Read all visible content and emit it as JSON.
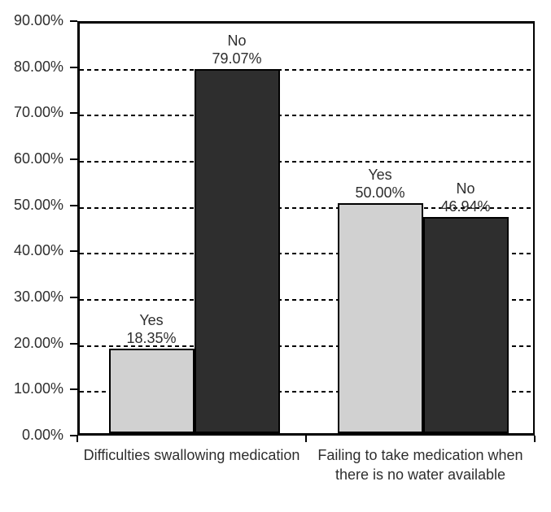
{
  "chart_data": {
    "type": "bar",
    "title": "",
    "categories": [
      "Difficulties swallowing medication",
      "Failing to take medication when there is no water available"
    ],
    "series": [
      {
        "name": "Yes",
        "values": [
          18.35,
          50.0
        ],
        "labels": [
          "18.35%",
          "50.00%"
        ],
        "color": "#d1d1d1"
      },
      {
        "name": "No",
        "values": [
          79.07,
          46.94
        ],
        "labels": [
          "79.07%",
          "46.94%"
        ],
        "color": "#2e2e2e"
      }
    ],
    "ylim": [
      0,
      90
    ],
    "yticks": [
      0,
      10,
      20,
      30,
      40,
      50,
      60,
      70,
      80,
      90
    ],
    "ytick_labels": [
      "0.00%",
      "10.00%",
      "20.00%",
      "30.00%",
      "40.00%",
      "50.00%",
      "60.00%",
      "70.00%",
      "80.00%",
      "90.00%"
    ],
    "grid": "horizontal-dashed",
    "legend": "none",
    "colors": {
      "axis": "#000000",
      "text": "#2e2e2e",
      "bar_border": "#000000",
      "background": "#ffffff"
    }
  }
}
